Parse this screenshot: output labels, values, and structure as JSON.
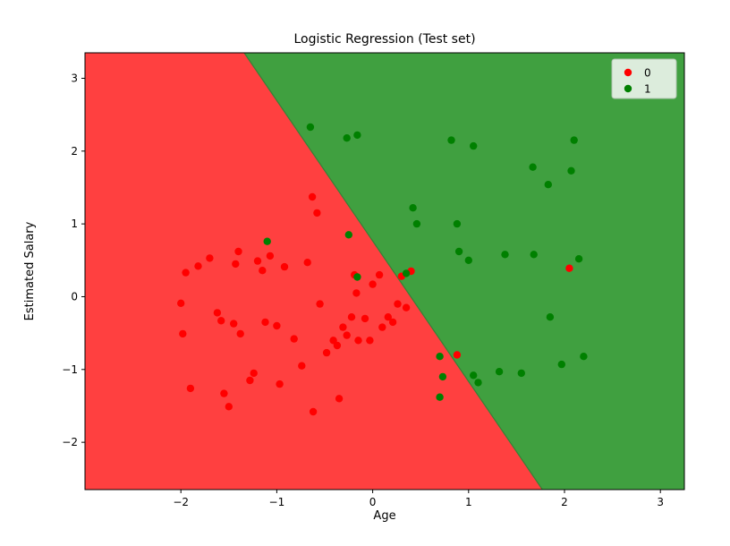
{
  "chart_data": {
    "type": "scatter",
    "title": "Logistic Regression (Test set)",
    "xlabel": "Age",
    "ylabel": "Estimated Salary",
    "xlim": [
      -3.0,
      3.25
    ],
    "ylim": [
      -2.65,
      3.35
    ],
    "xticks": [
      -2,
      -1,
      0,
      1,
      2,
      3
    ],
    "yticks": [
      -2,
      -1,
      0,
      1,
      2,
      3
    ],
    "grid": false,
    "regions": {
      "red_region_color": "#ff4040",
      "green_region_color": "#40a040",
      "boundary_line_color": "#378037",
      "boundary": {
        "x_at_ymax": -1.34,
        "x_at_ymin": 1.77
      }
    },
    "legend": {
      "position": "upper right",
      "entries": [
        {
          "label": "0",
          "color": "#ff0000"
        },
        {
          "label": "1",
          "color": "#008000"
        }
      ]
    },
    "series": [
      {
        "name": "0",
        "color": "#ff0000",
        "points": [
          [
            -2.0,
            -0.09
          ],
          [
            -1.98,
            -0.51
          ],
          [
            -1.95,
            0.33
          ],
          [
            -1.9,
            -1.26
          ],
          [
            -1.82,
            0.42
          ],
          [
            -1.7,
            0.53
          ],
          [
            -1.62,
            -0.22
          ],
          [
            -1.58,
            -0.33
          ],
          [
            -1.55,
            -1.33
          ],
          [
            -1.5,
            -1.51
          ],
          [
            -1.45,
            -0.37
          ],
          [
            -1.43,
            0.45
          ],
          [
            -1.4,
            0.62
          ],
          [
            -1.38,
            -0.51
          ],
          [
            -1.28,
            -1.15
          ],
          [
            -1.24,
            -1.05
          ],
          [
            -1.2,
            0.49
          ],
          [
            -1.15,
            0.36
          ],
          [
            -1.12,
            -0.35
          ],
          [
            -1.07,
            0.56
          ],
          [
            -1.0,
            -0.4
          ],
          [
            -0.97,
            -1.2
          ],
          [
            -0.92,
            0.41
          ],
          [
            -0.82,
            -0.58
          ],
          [
            -0.74,
            -0.95
          ],
          [
            -0.68,
            0.47
          ],
          [
            -0.63,
            1.37
          ],
          [
            -0.62,
            -1.58
          ],
          [
            -0.58,
            1.15
          ],
          [
            -0.55,
            -0.1
          ],
          [
            -0.48,
            -0.77
          ],
          [
            -0.41,
            -0.6
          ],
          [
            -0.37,
            -0.67
          ],
          [
            -0.35,
            -1.4
          ],
          [
            -0.31,
            -0.42
          ],
          [
            -0.27,
            -0.53
          ],
          [
            -0.22,
            -0.28
          ],
          [
            -0.19,
            0.3
          ],
          [
            -0.17,
            0.05
          ],
          [
            -0.15,
            -0.6
          ],
          [
            -0.08,
            -0.3
          ],
          [
            -0.03,
            -0.6
          ],
          [
            0.0,
            0.17
          ],
          [
            0.07,
            0.3
          ],
          [
            0.1,
            -0.42
          ],
          [
            0.16,
            -0.28
          ],
          [
            0.21,
            -0.35
          ],
          [
            0.26,
            -0.1
          ],
          [
            0.3,
            0.28
          ],
          [
            0.35,
            -0.15
          ],
          [
            0.4,
            0.35
          ],
          [
            0.88,
            -0.8
          ],
          [
            2.05,
            0.39
          ]
        ]
      },
      {
        "name": "1",
        "color": "#008000",
        "points": [
          [
            -1.1,
            0.76
          ],
          [
            -0.65,
            2.33
          ],
          [
            -0.27,
            2.18
          ],
          [
            -0.16,
            2.22
          ],
          [
            -0.25,
            0.85
          ],
          [
            -0.16,
            0.27
          ],
          [
            0.35,
            0.32
          ],
          [
            0.42,
            1.22
          ],
          [
            0.46,
            1.0
          ],
          [
            0.82,
            2.15
          ],
          [
            0.88,
            1.0
          ],
          [
            0.9,
            0.62
          ],
          [
            1.0,
            0.5
          ],
          [
            1.05,
            2.07
          ],
          [
            2.1,
            2.15
          ],
          [
            1.67,
            1.78
          ],
          [
            2.07,
            1.73
          ],
          [
            1.83,
            1.54
          ],
          [
            1.38,
            0.58
          ],
          [
            1.68,
            0.58
          ],
          [
            1.85,
            -0.28
          ],
          [
            0.7,
            -0.82
          ],
          [
            0.73,
            -1.1
          ],
          [
            0.7,
            -1.38
          ],
          [
            1.05,
            -1.08
          ],
          [
            1.1,
            -1.18
          ],
          [
            1.32,
            -1.03
          ],
          [
            1.55,
            -1.05
          ],
          [
            1.97,
            -0.93
          ],
          [
            2.2,
            -0.82
          ],
          [
            2.15,
            0.52
          ]
        ]
      }
    ]
  }
}
